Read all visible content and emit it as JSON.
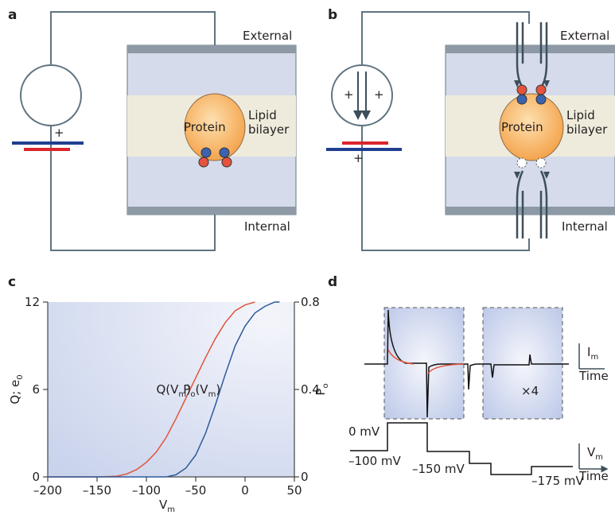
{
  "panel_a": {
    "label": "a",
    "external": "External",
    "internal": "Internal",
    "protein": "Protein",
    "lipid": "Lipid",
    "bilayer": "bilayer",
    "plus": "+"
  },
  "panel_b": {
    "label": "b",
    "external": "External",
    "internal": "Internal",
    "protein": "Protein",
    "lipid": "Lipid",
    "bilayer": "bilayer",
    "plus": "+"
  },
  "panel_c": {
    "label": "c"
  },
  "chart_data": {
    "type": "line",
    "xlabel": "V",
    "xlabel_sub": "m",
    "ylabel": "Q; e",
    "ylabel_sub": "0",
    "y2label": "P",
    "y2label_sub": "o",
    "x": [
      -200,
      -150,
      -130,
      -120,
      -110,
      -100,
      -90,
      -80,
      -70,
      -60,
      -50,
      -40,
      -30,
      -20,
      -10,
      0,
      10,
      20,
      30,
      35
    ],
    "series": [
      {
        "name": "Q(V",
        "name_sub": "m",
        "name_end": ")",
        "color": "#e0553a",
        "values": [
          0,
          0,
          0.05,
          0.2,
          0.5,
          1.0,
          1.7,
          2.7,
          4.0,
          5.4,
          6.8,
          8.2,
          9.5,
          10.6,
          11.4,
          11.8,
          12,
          null,
          null,
          null
        ]
      },
      {
        "name": "P",
        "name_sub": "o",
        "name_end": "(V",
        "name_sub2": "m",
        "name_end2": ")",
        "color": "#2d5a9b",
        "axis": "y2",
        "values": [
          0,
          0,
          0,
          0,
          0,
          0,
          0,
          0,
          0.01,
          0.04,
          0.1,
          0.2,
          0.33,
          0.47,
          0.6,
          0.69,
          0.75,
          0.78,
          0.8,
          0.8
        ]
      }
    ],
    "xlim": [
      -200,
      50
    ],
    "xticks": [
      {
        "value": -200,
        "label": "–200"
      },
      {
        "value": -150,
        "label": "–150"
      },
      {
        "value": -100,
        "label": "–100"
      },
      {
        "value": -50,
        "label": "–50"
      },
      0,
      50
    ],
    "ylim": [
      0,
      12
    ],
    "yticks": [
      0,
      6,
      12
    ],
    "y2lim": [
      0,
      0.8
    ],
    "y2ticks": [
      0,
      0.4,
      0.8
    ]
  },
  "panel_d": {
    "label": "d",
    "v0": "0 mV",
    "v100": "–100 mV",
    "v150": "–150 mV",
    "v175": "–175 mV",
    "scale": "×4",
    "current": "I",
    "current_sub": "m",
    "voltage": "V",
    "voltage_sub": "m",
    "time": "Time"
  }
}
